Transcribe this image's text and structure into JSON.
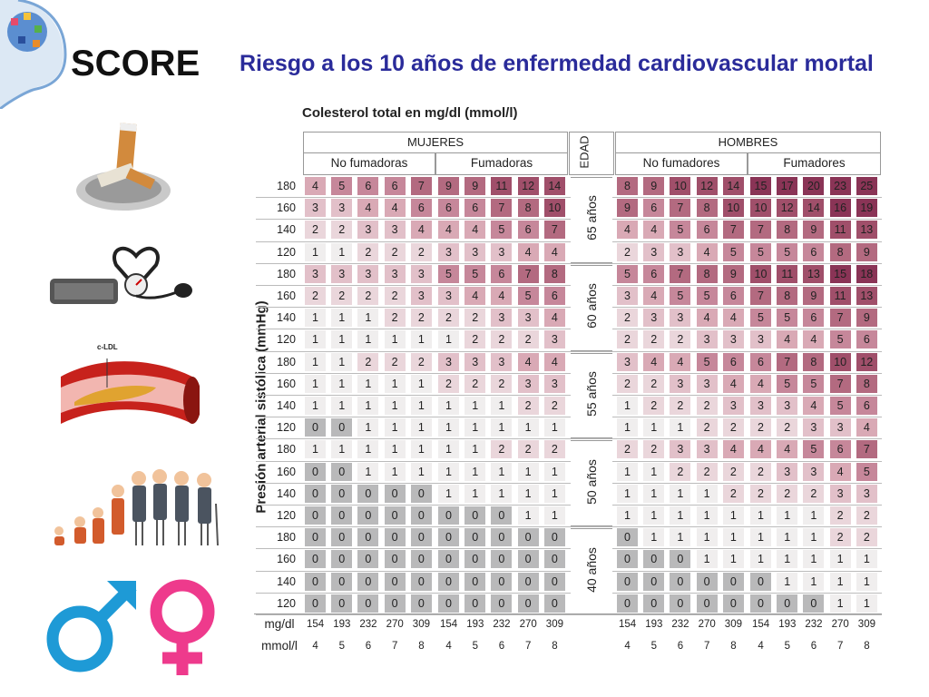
{
  "header": {
    "score": "SCORE",
    "title": "Riesgo a los 10 años de enfermedad cardiovascular mortal"
  },
  "table": {
    "caption": "Colesterol total en mg/dl (mmol/l)",
    "women_label": "MUJERES",
    "men_label": "HOMBRES",
    "age_header": "EDAD",
    "women_nonsmokers": "No fumadoras",
    "women_smokers": "Fumadoras",
    "men_nonsmokers": "No fumadores",
    "men_smokers": "Fumadores",
    "ylabel": "Presión arterial sistólica (mmHg)",
    "bp_values": [
      "180",
      "160",
      "140",
      "120"
    ],
    "age_groups": [
      "65 años",
      "60 años",
      "55 años",
      "50 años",
      "40 años"
    ],
    "mgdl_label": "mg/dl",
    "mmol_label": "mmol/l",
    "mgdl_values": [
      "154",
      "193",
      "232",
      "270",
      "309"
    ],
    "mmol_values": [
      "4",
      "5",
      "6",
      "7",
      "8"
    ],
    "rows": [
      [
        [
          4,
          5,
          6,
          6,
          7
        ],
        [
          9,
          9,
          11,
          12,
          14
        ],
        [
          8,
          9,
          10,
          12,
          14
        ],
        [
          15,
          17,
          20,
          23,
          25
        ]
      ],
      [
        [
          3,
          3,
          4,
          4,
          6
        ],
        [
          6,
          6,
          7,
          8,
          10
        ],
        [
          9,
          6,
          7,
          8,
          10
        ],
        [
          10,
          12,
          14,
          16,
          19
        ]
      ],
      [
        [
          2,
          2,
          3,
          3,
          4
        ],
        [
          4,
          4,
          5,
          6,
          7
        ],
        [
          4,
          4,
          5,
          6,
          7
        ],
        [
          7,
          8,
          9,
          11,
          13
        ]
      ],
      [
        [
          1,
          1,
          2,
          2,
          2
        ],
        [
          3,
          3,
          3,
          4,
          4
        ],
        [
          2,
          3,
          3,
          4,
          5
        ],
        [
          5,
          5,
          6,
          8,
          9
        ]
      ],
      [
        [
          3,
          3,
          3,
          3,
          3
        ],
        [
          5,
          5,
          6,
          7,
          8
        ],
        [
          5,
          6,
          7,
          8,
          9
        ],
        [
          10,
          11,
          13,
          15,
          18
        ]
      ],
      [
        [
          2,
          2,
          2,
          2,
          3
        ],
        [
          3,
          4,
          4,
          5,
          6
        ],
        [
          3,
          4,
          5,
          5,
          6
        ],
        [
          7,
          8,
          9,
          11,
          13
        ]
      ],
      [
        [
          1,
          1,
          1,
          2,
          2
        ],
        [
          2,
          2,
          3,
          3,
          4
        ],
        [
          2,
          3,
          3,
          4,
          4
        ],
        [
          5,
          5,
          6,
          7,
          9
        ]
      ],
      [
        [
          1,
          1,
          1,
          1,
          1
        ],
        [
          1,
          2,
          2,
          2,
          3
        ],
        [
          2,
          2,
          2,
          3,
          3
        ],
        [
          3,
          4,
          4,
          5,
          6
        ]
      ],
      [
        [
          1,
          1,
          2,
          2,
          2
        ],
        [
          3,
          3,
          3,
          4,
          4
        ],
        [
          3,
          4,
          4,
          5,
          6
        ],
        [
          6,
          7,
          8,
          10,
          12
        ]
      ],
      [
        [
          1,
          1,
          1,
          1,
          1
        ],
        [
          2,
          2,
          2,
          3,
          3
        ],
        [
          2,
          2,
          3,
          3,
          4
        ],
        [
          4,
          5,
          5,
          7,
          8
        ]
      ],
      [
        [
          1,
          1,
          1,
          1,
          1
        ],
        [
          1,
          1,
          1,
          2,
          2
        ],
        [
          1,
          2,
          2,
          2,
          3
        ],
        [
          3,
          3,
          4,
          5,
          6
        ]
      ],
      [
        [
          0,
          0,
          1,
          1,
          1
        ],
        [
          1,
          1,
          1,
          1,
          1
        ],
        [
          1,
          1,
          1,
          2,
          2
        ],
        [
          2,
          2,
          3,
          3,
          4
        ]
      ],
      [
        [
          1,
          1,
          1,
          1,
          1
        ],
        [
          1,
          1,
          2,
          2,
          2
        ],
        [
          2,
          2,
          3,
          3,
          4
        ],
        [
          4,
          4,
          5,
          6,
          7
        ]
      ],
      [
        [
          0,
          0,
          1,
          1,
          1
        ],
        [
          1,
          1,
          1,
          1,
          1
        ],
        [
          1,
          1,
          2,
          2,
          2
        ],
        [
          2,
          3,
          3,
          4,
          5
        ]
      ],
      [
        [
          0,
          0,
          0,
          0,
          0
        ],
        [
          1,
          1,
          1,
          1,
          1
        ],
        [
          1,
          1,
          1,
          1,
          2
        ],
        [
          2,
          2,
          2,
          3,
          3
        ]
      ],
      [
        [
          0,
          0,
          0,
          0,
          0
        ],
        [
          0,
          0,
          0,
          1,
          1
        ],
        [
          1,
          1,
          1,
          1,
          1
        ],
        [
          1,
          1,
          1,
          2,
          2
        ]
      ],
      [
        [
          0,
          0,
          0,
          0,
          0
        ],
        [
          0,
          0,
          0,
          0,
          0
        ],
        [
          0,
          1,
          1,
          1,
          1
        ],
        [
          1,
          1,
          1,
          2,
          2
        ]
      ],
      [
        [
          0,
          0,
          0,
          0,
          0
        ],
        [
          0,
          0,
          0,
          0,
          0
        ],
        [
          0,
          0,
          0,
          1,
          1
        ],
        [
          1,
          1,
          1,
          1,
          1
        ]
      ],
      [
        [
          0,
          0,
          0,
          0,
          0
        ],
        [
          0,
          0,
          0,
          0,
          0
        ],
        [
          0,
          0,
          0,
          0,
          0
        ],
        [
          0,
          1,
          1,
          1,
          1
        ]
      ],
      [
        [
          0,
          0,
          0,
          0,
          0
        ],
        [
          0,
          0,
          0,
          0,
          0
        ],
        [
          0,
          0,
          0,
          0,
          0
        ],
        [
          0,
          0,
          0,
          1,
          1
        ]
      ]
    ]
  },
  "sidebar": {
    "artery_label": "c-LDL",
    "icons": [
      "brain-icon",
      "cigarette-icon",
      "blood-pressure-icon",
      "artery-icon",
      "aging-family-icon",
      "gender-symbols-icon"
    ]
  },
  "colors": {
    "title": "#2a2b9a",
    "male": "#1e9ad6",
    "female": "#ee3a8c",
    "risk_0": "#b9b9ba",
    "risk_1": "#f0eeee",
    "risk_2": "#ead6db",
    "risk_3": "#e2c0c9",
    "risk_4": "#d9a9b5",
    "risk_5": "#c6879a",
    "risk_6": "#b36a80",
    "risk_7": "#a04f6a",
    "risk_high": "#8a3456"
  }
}
